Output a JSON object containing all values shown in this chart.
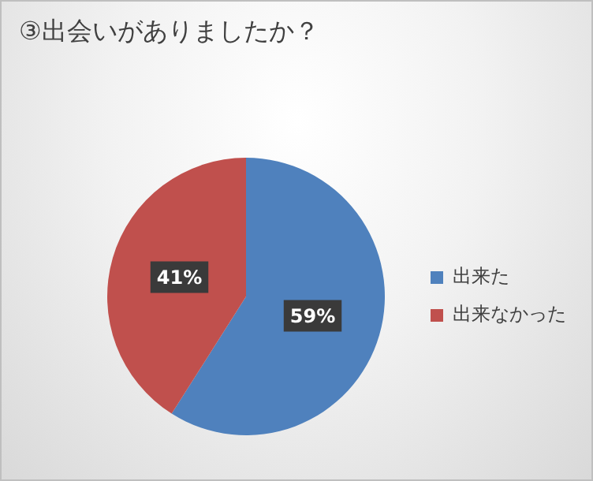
{
  "chart_data": {
    "type": "pie",
    "title": "③出会いがありましたか？",
    "categories": [
      "出来た",
      "出来なかった"
    ],
    "values": [
      59,
      41
    ],
    "colors": [
      "#4f81bd",
      "#c0504d"
    ],
    "value_labels": [
      "59%",
      "41%"
    ],
    "legend": "right"
  }
}
